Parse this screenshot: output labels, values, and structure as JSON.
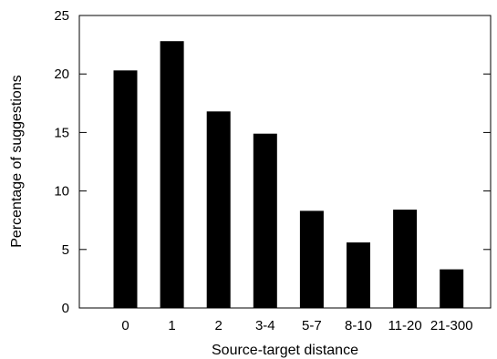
{
  "chart_data": {
    "type": "bar",
    "title": "",
    "xlabel": "Source-target distance",
    "ylabel": "Percentage of suggestions",
    "categories": [
      "0",
      "1",
      "2",
      "3-4",
      "5-7",
      "8-10",
      "11-20",
      "21-300"
    ],
    "values": [
      20.3,
      22.8,
      16.8,
      14.9,
      8.3,
      5.6,
      8.4,
      3.3
    ],
    "ylim": [
      0,
      25
    ],
    "yticks": [
      0,
      5,
      10,
      15,
      20,
      25
    ],
    "grid": false,
    "legend": "none",
    "bar_color": "#000000"
  }
}
